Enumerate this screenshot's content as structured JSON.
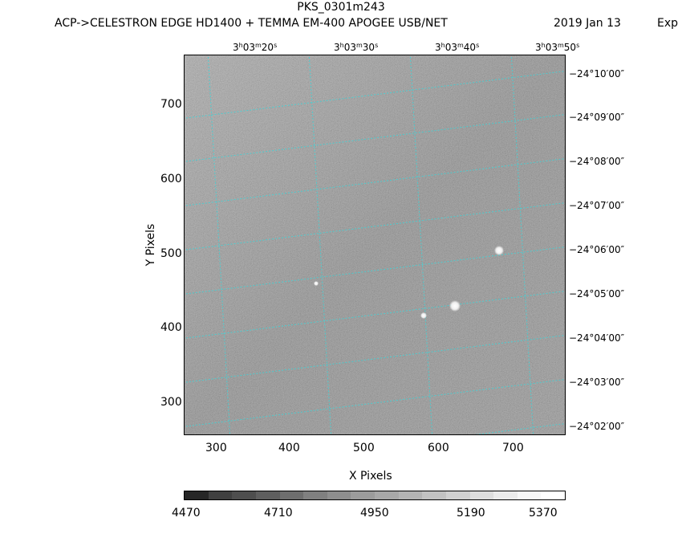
{
  "header": {
    "title": "PKS_0301m243",
    "subtitle": "ACP->CELESTRON EDGE HD1400 + TEMMA EM-400 APOGEE USB/NET",
    "date": "2019 Jan 13",
    "exp": "Exp"
  },
  "axes": {
    "xlabel": "X Pixels",
    "ylabel": "Y Pixels",
    "x_ticks": [
      "300",
      "400",
      "500",
      "600",
      "700"
    ],
    "y_ticks": [
      "700",
      "600",
      "500",
      "400",
      "300"
    ],
    "ra_labels": [
      {
        "h": "3",
        "m": "03",
        "s": "20"
      },
      {
        "h": "3",
        "m": "03",
        "s": "30"
      },
      {
        "h": "3",
        "m": "03",
        "s": "40"
      },
      {
        "h": "3",
        "m": "03",
        "s": "50"
      }
    ],
    "ra_units": {
      "h": "h",
      "m": "m",
      "s": "s"
    },
    "dec_labels": [
      "−24°10′00″",
      "−24°09′00″",
      "−24°08′00″",
      "−24°07′00″",
      "−24°06′00″",
      "−24°05′00″",
      "−24°04′00″",
      "−24°03′00″",
      "−24°02′00″"
    ]
  },
  "colorbar": {
    "labels": [
      "4470",
      "4710",
      "4950",
      "5190",
      "5370"
    ],
    "colors": [
      "#262626",
      "#404040",
      "#4e4e4e",
      "#5e5e5e",
      "#6e6e6e",
      "#808080",
      "#8e8e8e",
      "#9c9c9c",
      "#a8a8a8",
      "#b4b4b4",
      "#c2c2c2",
      "#d0d0d0",
      "#dedede",
      "#ebebeb",
      "#f7f7f7",
      "#ffffff"
    ]
  },
  "colors": {
    "grid": "#3fd4d8",
    "image_bg": "#8a8a8a"
  }
}
